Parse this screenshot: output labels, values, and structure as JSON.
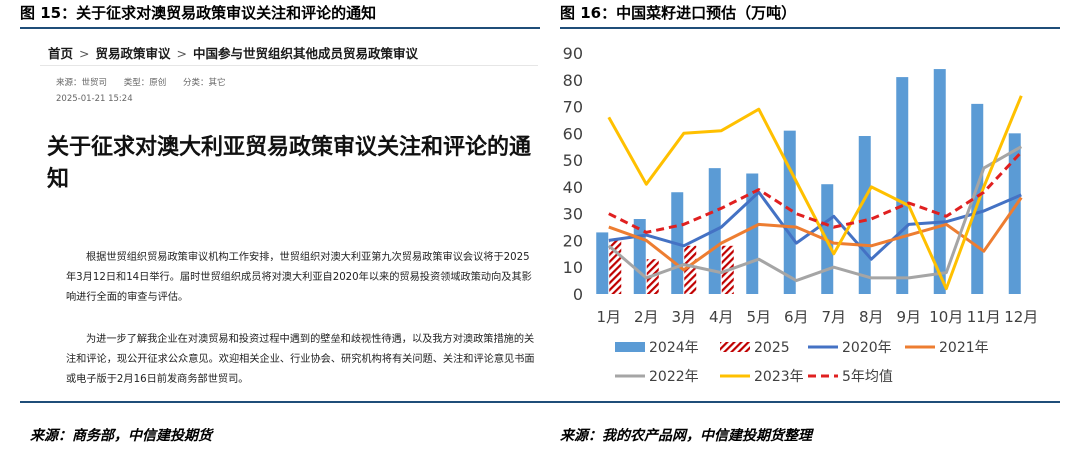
{
  "left": {
    "fig_title": "图 15：关于征求对澳贸易政策审议关注和评论的通知",
    "source": "来源：商务部，中信建投期货",
    "breadcrumb": [
      "首页",
      "贸易政策审议",
      "中国参与世贸组织其他成员贸易政策审议"
    ],
    "breadcrumb_sep": ">",
    "meta": {
      "source": "来源：世贸司",
      "type": "类型：原创",
      "category": "分类：其它"
    },
    "date": "2025-01-21 15:24",
    "article_title": "关于征求对澳大利亚贸易政策审议关注和评论的通知",
    "para1": "根据世贸组织贸易政策审议机构工作安排，世贸组织对澳大利亚第九次贸易政策审议会议将于2025年3月12日和14日举行。届时世贸组织成员将对澳大利亚自2020年以来的贸易投资领域政策动向及其影响进行全面的审查与评估。",
    "para2": "为进一步了解我企业在对澳贸易和投资过程中遇到的壁垒和歧视性待遇，以及我方对澳政策措施的关注和评论，现公开征求公众意见。欢迎相关企业、行业协会、研究机构将有关问题、关注和评论意见书面或电子版于2月16日前发商务部世贸司。"
  },
  "right": {
    "fig_title": "图 16：中国菜籽进口预估（万吨）",
    "source": "来源：我的农产品网，中信建投期货整理"
  },
  "colors": {
    "rule": "#1f4e79",
    "bar": "#5b9bd5",
    "bar2025": "#c00000",
    "y2020": "#4472c4",
    "y2021": "#ed7d31",
    "y2022": "#a5a5a5",
    "y2023": "#ffc000",
    "avg": "#e02020"
  },
  "chart_data": {
    "type": "bar",
    "categories": [
      "1月",
      "2月",
      "3月",
      "4月",
      "5月",
      "6月",
      "7月",
      "8月",
      "9月",
      "10月",
      "11月",
      "12月"
    ],
    "ylim": [
      0,
      90
    ],
    "yticks": [
      0,
      10,
      20,
      30,
      40,
      50,
      60,
      70,
      80,
      90
    ],
    "grid": false,
    "legend_position": "bottom",
    "series": [
      {
        "name": "2024年",
        "kind": "bar",
        "values": [
          23,
          28,
          38,
          47,
          45,
          61,
          41,
          59,
          81,
          84,
          71,
          60
        ]
      },
      {
        "name": "2025",
        "kind": "bar-hatched",
        "values": [
          20,
          13,
          18,
          18,
          null,
          null,
          null,
          null,
          null,
          null,
          null,
          null
        ]
      },
      {
        "name": "2020年",
        "kind": "line",
        "values": [
          20,
          22,
          18,
          25,
          38,
          19,
          29,
          13,
          26,
          27,
          31,
          37
        ]
      },
      {
        "name": "2021年",
        "kind": "line",
        "values": [
          25,
          20,
          9,
          19,
          26,
          25,
          19,
          18,
          22,
          26,
          16,
          36
        ]
      },
      {
        "name": "2022年",
        "kind": "line",
        "values": [
          18,
          6,
          11,
          8,
          13,
          5,
          10,
          6,
          6,
          8,
          47,
          55
        ]
      },
      {
        "name": "2023年",
        "kind": "line",
        "values": [
          66,
          41,
          60,
          61,
          69,
          42,
          15,
          40,
          33,
          2,
          40,
          74
        ]
      },
      {
        "name": "5年均值",
        "kind": "line-dashed",
        "values": [
          30,
          23,
          26,
          32,
          39,
          30,
          25,
          28,
          34,
          29,
          38,
          53
        ]
      }
    ]
  }
}
